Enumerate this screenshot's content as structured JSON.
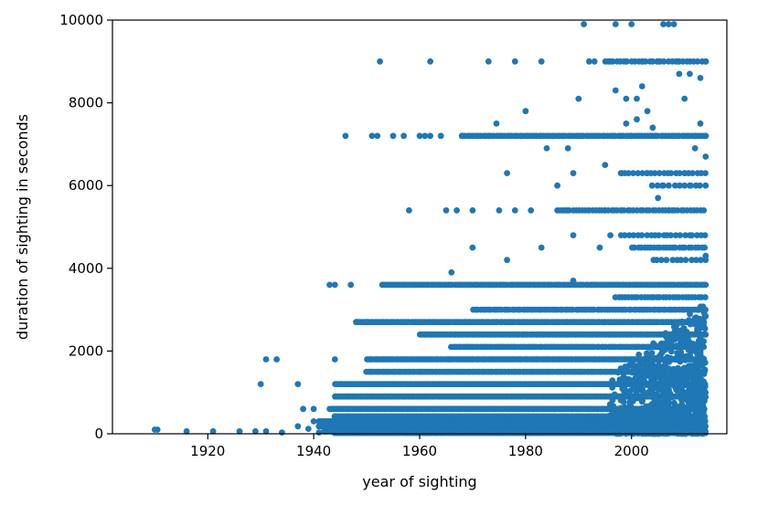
{
  "chart_data": {
    "type": "scatter",
    "title": "",
    "xlabel": "year of sighting",
    "ylabel": "duration of sighting in seconds",
    "xlim": [
      1902,
      2018
    ],
    "ylim": [
      0,
      10000
    ],
    "xticks": [
      1920,
      1940,
      1960,
      1980,
      2000
    ],
    "yticks": [
      0,
      2000,
      4000,
      6000,
      8000,
      10000
    ],
    "grid": false,
    "legend": "none",
    "point_color": "#1f77b4",
    "series": [
      {
        "points": [
          [
            1910,
            100
          ],
          [
            1910.5,
            100
          ],
          [
            1916,
            60
          ],
          [
            1921,
            60
          ],
          [
            1926,
            60
          ],
          [
            1929,
            60
          ],
          [
            1930,
            1200
          ],
          [
            1931,
            1800
          ],
          [
            1931,
            60
          ],
          [
            1933,
            1800
          ],
          [
            1934,
            30
          ],
          [
            1937,
            1200
          ],
          [
            1937,
            180
          ],
          [
            1938,
            600
          ],
          [
            1939,
            120
          ],
          [
            1940,
            600
          ],
          [
            1940,
            300
          ],
          [
            1941,
            30
          ],
          [
            1942,
            60
          ],
          [
            1943,
            120
          ],
          [
            1943,
            3600
          ],
          [
            1944,
            3600
          ],
          [
            1944,
            1800
          ],
          [
            1945,
            1200
          ],
          [
            1946,
            7200
          ],
          [
            1947,
            3600
          ],
          [
            1948,
            2700
          ],
          [
            1950,
            2700
          ],
          [
            1951,
            7200
          ],
          [
            1952,
            7200
          ],
          [
            1952.5,
            9000
          ],
          [
            1953,
            3600
          ],
          [
            1955,
            7200
          ],
          [
            1957,
            7200
          ],
          [
            1958,
            5400
          ],
          [
            1960,
            7200
          ],
          [
            1961,
            7200
          ],
          [
            1962,
            9000
          ],
          [
            1962,
            7200
          ],
          [
            1964,
            7200
          ],
          [
            1965,
            5400
          ],
          [
            1966,
            3900
          ],
          [
            1967,
            5400
          ],
          [
            1968,
            7200
          ],
          [
            1970,
            5400
          ],
          [
            1970,
            4500
          ],
          [
            1971,
            7200
          ],
          [
            1973,
            9000
          ],
          [
            1973,
            7200
          ],
          [
            1974.5,
            7500
          ],
          [
            1975,
            5400
          ],
          [
            1976.5,
            6300
          ],
          [
            1976.5,
            4200
          ],
          [
            1978,
            9000
          ],
          [
            1978,
            5400
          ],
          [
            1979,
            7200
          ],
          [
            1980,
            7800
          ],
          [
            1981,
            5400
          ],
          [
            1982,
            7200
          ],
          [
            1983,
            9000
          ],
          [
            1983,
            4500
          ],
          [
            1984,
            6900
          ],
          [
            1985,
            7200
          ],
          [
            1986,
            6000
          ],
          [
            1987,
            5400
          ],
          [
            1987,
            7200
          ],
          [
            1988,
            6900
          ],
          [
            1988,
            5400
          ],
          [
            1989,
            6300
          ],
          [
            1989,
            4800
          ],
          [
            1989,
            3700
          ],
          [
            1990,
            8100
          ],
          [
            1990,
            7200
          ],
          [
            1991,
            9900
          ],
          [
            1992,
            9000
          ],
          [
            1992,
            5400
          ],
          [
            1993,
            9000
          ],
          [
            1994,
            4500
          ],
          [
            1995,
            6500
          ],
          [
            1995,
            5400
          ],
          [
            1996,
            4800
          ],
          [
            1996,
            9000
          ],
          [
            1997,
            9900
          ],
          [
            1997,
            8300
          ],
          [
            1998,
            7200
          ],
          [
            1998,
            6300
          ],
          [
            1998,
            5400
          ],
          [
            1999,
            7500
          ],
          [
            1999,
            8100
          ],
          [
            1999,
            9000
          ],
          [
            2000,
            9900
          ],
          [
            2000,
            7200
          ],
          [
            2001,
            8100
          ],
          [
            2001,
            7600
          ],
          [
            2002,
            8400
          ],
          [
            2002,
            9000
          ],
          [
            2003,
            7800
          ],
          [
            2003,
            6300
          ],
          [
            2004,
            7400
          ],
          [
            2005,
            5700
          ],
          [
            2005,
            9000
          ],
          [
            2006,
            9900
          ],
          [
            2006,
            6000
          ],
          [
            2007,
            9900
          ],
          [
            2007,
            5400
          ],
          [
            2008,
            9900
          ],
          [
            2008,
            7200
          ],
          [
            2009,
            8700
          ],
          [
            2009,
            9000
          ],
          [
            2010,
            8100
          ],
          [
            2010,
            6300
          ],
          [
            2011,
            8700
          ],
          [
            2011,
            6000
          ],
          [
            2012,
            6900
          ],
          [
            2012,
            7200
          ],
          [
            2013,
            8600
          ],
          [
            2013,
            7500
          ],
          [
            2014,
            9000
          ],
          [
            2014,
            6700
          ],
          [
            2014,
            4300
          ],
          [
            2014,
            3600
          ],
          [
            2014,
            2400
          ],
          [
            2013,
            2000
          ],
          [
            2012,
            1600
          ]
        ],
        "bands": [
          {
            "y": 9000,
            "x_from": 1995,
            "x_to": 2014,
            "step": 0.7
          },
          {
            "y": 7200,
            "x_from": 1968,
            "x_to": 2014,
            "step": 0.5
          },
          {
            "y": 6300,
            "x_from": 1998,
            "x_to": 2014,
            "step": 0.8
          },
          {
            "y": 6000,
            "x_from": 2004,
            "x_to": 2014,
            "step": 1.0
          },
          {
            "y": 5400,
            "x_from": 1986,
            "x_to": 2014,
            "step": 0.6
          },
          {
            "y": 4800,
            "x_from": 1998,
            "x_to": 2014,
            "step": 0.8
          },
          {
            "y": 4500,
            "x_from": 2000,
            "x_to": 2014,
            "step": 0.6
          },
          {
            "y": 4200,
            "x_from": 2004,
            "x_to": 2014,
            "step": 0.9
          },
          {
            "y": 3600,
            "x_from": 1953,
            "x_to": 2014,
            "step": 0.4
          },
          {
            "y": 3300,
            "x_from": 1997,
            "x_to": 2014,
            "step": 0.6
          },
          {
            "y": 3000,
            "x_from": 1970,
            "x_to": 2014,
            "step": 0.5
          },
          {
            "y": 2700,
            "x_from": 1948,
            "x_to": 2014,
            "step": 0.4
          },
          {
            "y": 2400,
            "x_from": 1960,
            "x_to": 2014,
            "step": 0.4
          },
          {
            "y": 2100,
            "x_from": 1966,
            "x_to": 2014,
            "step": 0.45
          },
          {
            "y": 1800,
            "x_from": 1950,
            "x_to": 2014,
            "step": 0.35
          },
          {
            "y": 1500,
            "x_from": 1950,
            "x_to": 2014,
            "step": 0.35
          },
          {
            "y": 1200,
            "x_from": 1944,
            "x_to": 2014,
            "step": 0.3
          },
          {
            "y": 900,
            "x_from": 1944,
            "x_to": 2014,
            "step": 0.3
          },
          {
            "y": 600,
            "x_from": 1943,
            "x_to": 2014,
            "step": 0.3
          },
          {
            "y": 420,
            "x_from": 1944,
            "x_to": 2014,
            "step": 0.3
          },
          {
            "y": 300,
            "x_from": 1941,
            "x_to": 2014,
            "step": 0.3
          },
          {
            "y": 180,
            "x_from": 1941,
            "x_to": 2014,
            "step": 0.3
          },
          {
            "y": 120,
            "x_from": 1943,
            "x_to": 2014,
            "step": 0.3
          },
          {
            "y": 60,
            "x_from": 1942,
            "x_to": 2014,
            "step": 0.3
          },
          {
            "y": 20,
            "x_from": 1944,
            "x_to": 2014,
            "step": 0.3
          }
        ],
        "dense_cluster": {
          "x_from": 1995,
          "x_to": 2014,
          "y_from": 0,
          "y_to": 3200,
          "count": 900
        }
      }
    ]
  }
}
